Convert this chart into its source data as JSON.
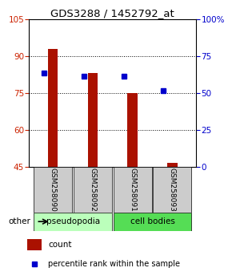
{
  "title": "GDS3288 / 1452792_at",
  "samples": [
    "GSM258090",
    "GSM258092",
    "GSM258091",
    "GSM258093"
  ],
  "bar_values": [
    93.0,
    83.0,
    75.0,
    46.5
  ],
  "percentile_values": [
    83.0,
    82.0,
    82.0,
    76.0
  ],
  "bar_color": "#aa1100",
  "percentile_color": "#0000cc",
  "ylim_left": [
    45,
    105
  ],
  "yticks_left": [
    45,
    60,
    75,
    90,
    105
  ],
  "ylim_right": [
    0,
    100
  ],
  "yticks_right": [
    0,
    25,
    50,
    75,
    100
  ],
  "ylabel_right_labels": [
    "0",
    "25",
    "50",
    "75",
    "100%"
  ],
  "groups": [
    {
      "label": "pseudopodia",
      "indices": [
        0,
        1
      ],
      "color": "#bbffbb"
    },
    {
      "label": "cell bodies",
      "indices": [
        2,
        3
      ],
      "color": "#55dd55"
    }
  ],
  "group_bg_color": "#cccccc",
  "legend_count_label": "count",
  "legend_percentile_label": "percentile rank within the sample",
  "other_label": "other",
  "background_color": "#ffffff",
  "plot_bg_color": "#ffffff"
}
